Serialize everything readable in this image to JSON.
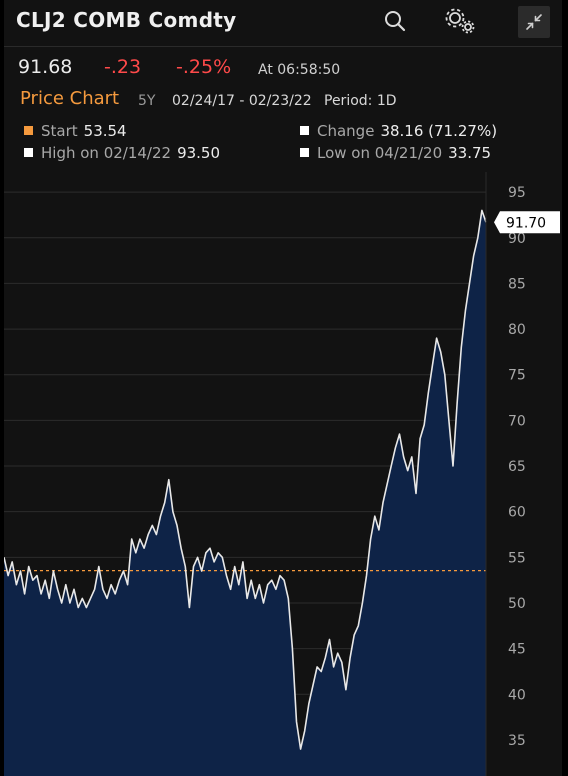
{
  "header": {
    "title": "CLJ2 COMB Comdty",
    "icons": [
      "search-icon",
      "settings-icon",
      "collapse-icon"
    ]
  },
  "quote": {
    "last": "91.68",
    "change": "-.23",
    "change_pct": "-.25%",
    "time": "At 06:58:50"
  },
  "chart_header": {
    "label": "Price Chart",
    "period_code": "5Y",
    "date_range": "02/24/17 - 02/23/22",
    "period": "Period: 1D"
  },
  "stats": {
    "start_label": "Start",
    "start_value": "53.54",
    "change_label": "Change",
    "change_value": "38.16 (71.27%)",
    "high_label": "High on 02/14/22",
    "high_value": "93.50",
    "low_label": "Low on 04/21/20",
    "low_value": "33.75"
  },
  "colors": {
    "accent_orange": "#f59a3e",
    "negative": "#ff4a4a",
    "area_fill": "#0e2347",
    "line": "#e8e8e8"
  },
  "chart_data": {
    "type": "area",
    "x_start": "02/24/17",
    "x_end": "02/23/22",
    "y_ticks": [
      35,
      40,
      45,
      50,
      55,
      60,
      65,
      70,
      75,
      80,
      85,
      90,
      95
    ],
    "ylim": [
      32,
      96
    ],
    "start_ref": 53.54,
    "last_tag": "91.70",
    "last_value": 91.7,
    "series": [
      {
        "values": [
          55,
          53,
          54.5,
          52,
          53.5,
          51,
          54,
          52.5,
          53,
          51,
          52.5,
          50.5,
          53.5,
          51.5,
          50,
          52,
          50,
          51.5,
          49.5,
          50.5,
          49.5,
          50.5,
          51.5,
          54,
          51.5,
          50.5,
          52,
          51,
          52.5,
          53.5,
          52,
          57,
          55.5,
          57,
          56,
          57.5,
          58.5,
          57.5,
          59.5,
          61,
          63.5,
          60,
          58.5,
          56,
          54,
          49.5,
          54,
          55,
          53.5,
          55.5,
          56,
          54.5,
          55.5,
          55,
          53,
          51.5,
          54,
          52,
          54.5,
          50.5,
          52.5,
          50.5,
          52,
          50,
          52,
          52.5,
          51.5,
          53,
          52.5,
          50.5,
          45,
          37,
          34,
          36,
          39,
          41,
          43,
          42.5,
          44,
          46,
          43,
          44.5,
          43.5,
          40.5,
          44,
          46.5,
          47.5,
          50,
          53,
          57,
          59.5,
          58,
          61,
          63,
          65,
          67,
          68.5,
          66,
          64.5,
          66,
          62,
          68,
          69.5,
          73,
          76,
          79,
          77.5,
          75,
          70,
          65,
          72,
          78,
          82,
          85,
          88,
          90,
          93,
          91.7
        ]
      }
    ]
  }
}
